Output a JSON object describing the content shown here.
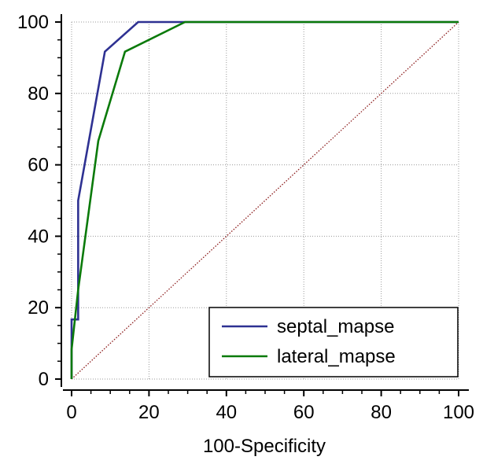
{
  "chart_data": {
    "type": "line",
    "title": "",
    "xlabel": "100-Specificity",
    "ylabel": "",
    "xlim": [
      0,
      100
    ],
    "ylim": [
      0,
      100
    ],
    "xticks": [
      0,
      20,
      40,
      60,
      80,
      100
    ],
    "yticks": [
      0,
      20,
      40,
      60,
      80,
      100
    ],
    "grid": true,
    "legend_position": "bottom-right",
    "series": [
      {
        "name": "septal_mapse",
        "color": "#2e3192",
        "points": [
          [
            0,
            0
          ],
          [
            0,
            8.3
          ],
          [
            0,
            16.7
          ],
          [
            1.7,
            16.7
          ],
          [
            1.7,
            50
          ],
          [
            8.6,
            91.7
          ],
          [
            17.2,
            100
          ],
          [
            100,
            100
          ]
        ]
      },
      {
        "name": "lateral_mapse",
        "color": "#0a7a0a",
        "points": [
          [
            0,
            0
          ],
          [
            0,
            8.3
          ],
          [
            1.7,
            25
          ],
          [
            6.9,
            66.7
          ],
          [
            13.8,
            91.7
          ],
          [
            29.3,
            100
          ],
          [
            100,
            100
          ]
        ]
      }
    ],
    "reference_line": {
      "color": "#8b1a1a",
      "points": [
        [
          0,
          0
        ],
        [
          100,
          100
        ]
      ]
    }
  }
}
